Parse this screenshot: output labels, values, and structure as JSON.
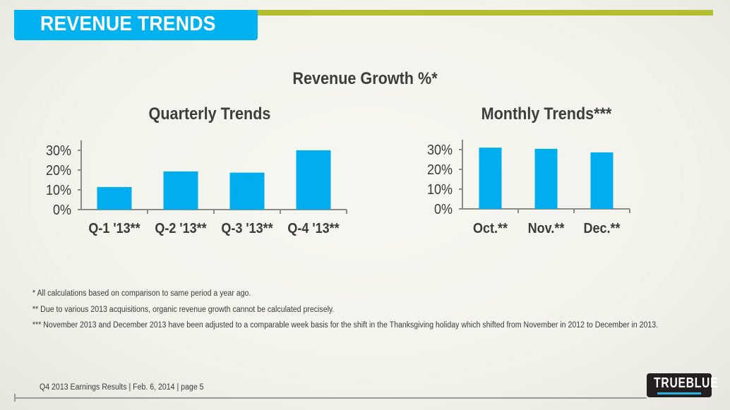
{
  "header": {
    "title": "REVENUE TRENDS",
    "accent_color": "#00b2f0",
    "rule_color": "#b3bf30"
  },
  "main_title": "Revenue Growth %*",
  "chart_data": [
    {
      "type": "bar",
      "title": "Quarterly Trends",
      "categories": [
        "Q-1 '13**",
        "Q-2 '13**",
        "Q-3 '13**",
        "Q-4 '13**"
      ],
      "values": [
        11.4,
        19.3,
        18.7,
        30.0
      ],
      "yticks": [
        "0%",
        "10%",
        "20%",
        "30%"
      ],
      "ylim": [
        0,
        30
      ],
      "xlabel": "",
      "ylabel": "",
      "grid": false,
      "bar_color": "#00aeef"
    },
    {
      "type": "bar",
      "title": "Monthly Trends***",
      "categories": [
        "Oct.**",
        "Nov.**",
        "Dec.**"
      ],
      "values": [
        31.0,
        30.4,
        28.6
      ],
      "yticks": [
        "0%",
        "10%",
        "20%",
        "30%"
      ],
      "ylim": [
        0,
        30
      ],
      "xlabel": "",
      "ylabel": "",
      "grid": false,
      "bar_color": "#00aeef"
    }
  ],
  "footnotes": [
    "* All calculations based on comparison to same period a year ago.",
    "** Due to various 2013 acquisitions, organic revenue growth cannot be calculated precisely.",
    "*** November 2013 and December 2013 have been adjusted to a comparable week basis for the shift in the Thanksgiving holiday which shifted from November in 2012 to December in 2013."
  ],
  "footer": {
    "page_info": "Q4 2013 Earnings Results | Feb. 6, 2014  | page 5",
    "logo": "TRUEBLUE"
  }
}
